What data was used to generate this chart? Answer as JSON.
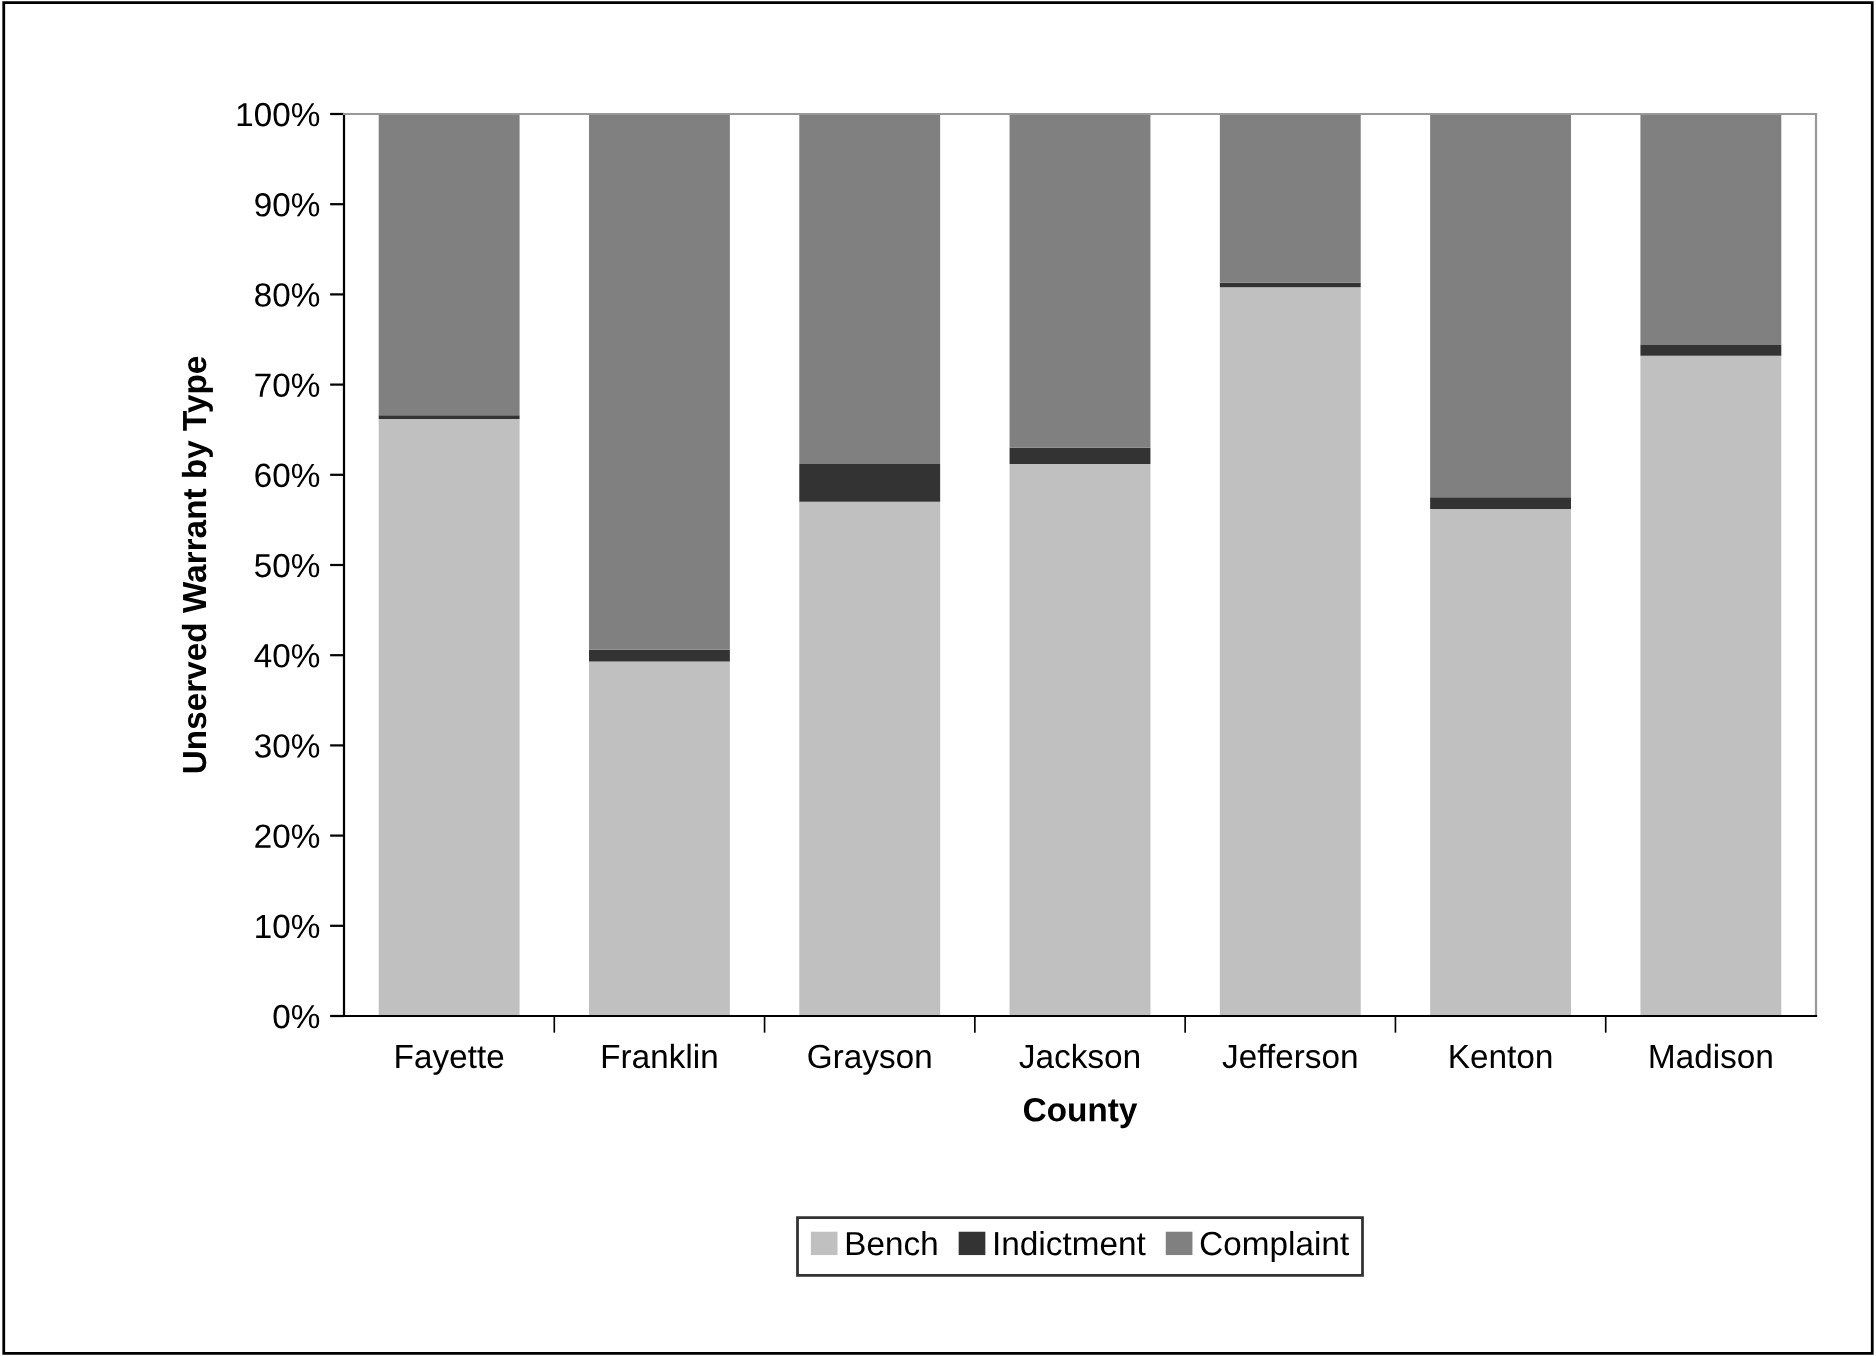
{
  "chart_data": {
    "type": "bar",
    "stacked": true,
    "xlabel": "County",
    "ylabel": "Unserved Warrant by Type",
    "categories": [
      "Fayette",
      "Franklin",
      "Grayson",
      "Jackson",
      "Jefferson",
      "Kenton",
      "Madison"
    ],
    "series": [
      {
        "name": "Bench",
        "color": "#c0c0c0",
        "values": [
          66.2,
          39.3,
          57.0,
          61.2,
          80.8,
          56.2,
          73.2
        ]
      },
      {
        "name": "Indictment",
        "color": "#333333",
        "values": [
          0.4,
          1.3,
          4.2,
          1.8,
          0.5,
          1.3,
          1.2
        ]
      },
      {
        "name": "Complaint",
        "color": "#808080",
        "values": [
          33.4,
          59.4,
          38.8,
          37.0,
          18.7,
          42.5,
          25.6
        ]
      }
    ],
    "ylim": [
      0,
      100
    ],
    "yticks": [
      {
        "value": 0,
        "label": "0%"
      },
      {
        "value": 10,
        "label": "10%"
      },
      {
        "value": 20,
        "label": "20%"
      },
      {
        "value": 30,
        "label": "30%"
      },
      {
        "value": 40,
        "label": "40%"
      },
      {
        "value": 50,
        "label": "50%"
      },
      {
        "value": 60,
        "label": "60%"
      },
      {
        "value": 70,
        "label": "70%"
      },
      {
        "value": 80,
        "label": "80%"
      },
      {
        "value": 90,
        "label": "90%"
      },
      {
        "value": 100,
        "label": "100%"
      }
    ],
    "grid": false,
    "legend": "bottom"
  }
}
